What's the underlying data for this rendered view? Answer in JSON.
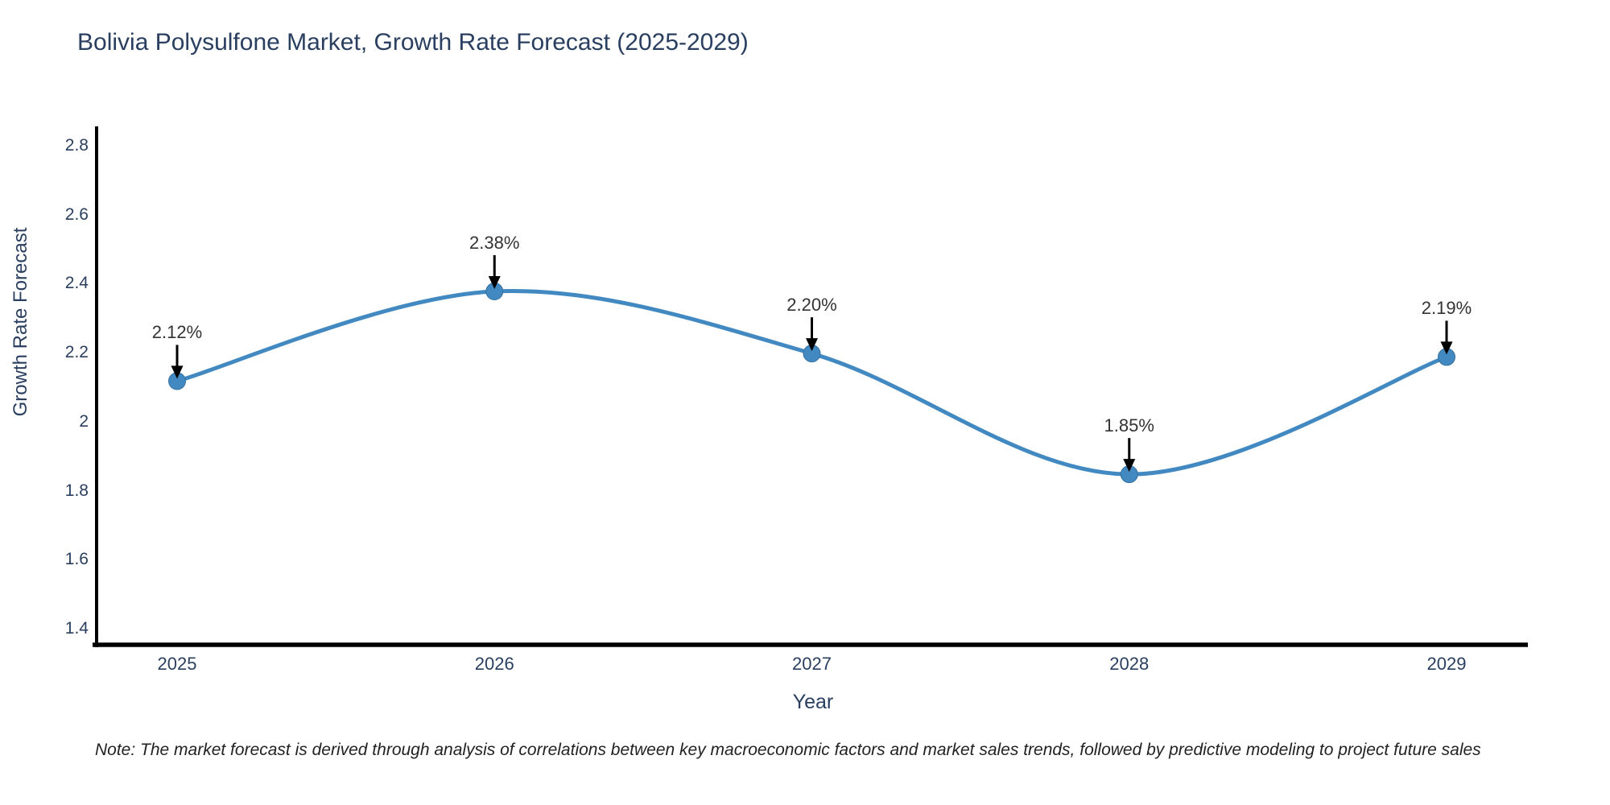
{
  "note": "Note: The market forecast is derived through analysis of correlations between key macroeconomic factors and market sales trends, followed by predictive modeling to project future sales",
  "chart_data": {
    "type": "line",
    "line_shape": "spline",
    "title": "Bolivia Polysulfone Market, Growth Rate Forecast (2025-2029)",
    "xlabel": "Year",
    "ylabel": "Growth Rate Forecast",
    "categories": [
      "2025",
      "2026",
      "2027",
      "2028",
      "2029"
    ],
    "values": [
      2.12,
      2.38,
      2.2,
      1.85,
      2.19
    ],
    "point_labels": [
      "2.12%",
      "2.38%",
      "2.20%",
      "1.85%",
      "2.19%"
    ],
    "y_ticks": [
      "1.4",
      "1.6",
      "1.8",
      "2",
      "2.2",
      "2.4",
      "2.6",
      "2.8"
    ],
    "y_tick_values": [
      1.4,
      1.6,
      1.8,
      2.0,
      2.2,
      2.4,
      2.6,
      2.8
    ],
    "ylim": [
      1.35,
      2.85
    ],
    "grid": false,
    "legend": "none",
    "markers": true,
    "annotations_have_arrows": true,
    "colors": {
      "line": "#4289c2",
      "marker": "#4289c2",
      "marker_edge": "#36719f",
      "axis_line": "#000000",
      "arrow": "#000000",
      "text": "#2a3f5f",
      "annotation_text": "#333333"
    }
  }
}
